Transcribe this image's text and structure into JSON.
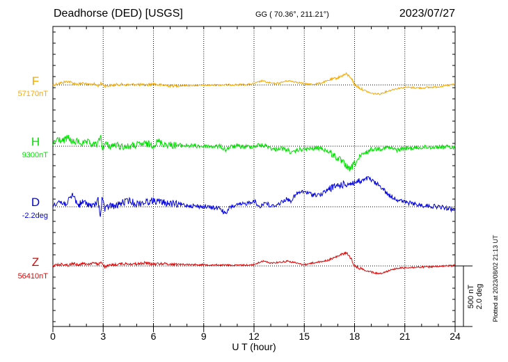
{
  "header": {
    "station": "Deadhorse (DED)  [USGS]",
    "coords": "GG ( 70.36°, 211.21°)",
    "date": "2023/07/27"
  },
  "side_note": "Plotted at 2023/08/02 21:13 UT",
  "scale_bar": {
    "nt_label": "500 nT",
    "deg_label": "2.0 deg"
  },
  "chart_data": {
    "type": "line",
    "xlabel": "U T (hour)",
    "xlim": [
      0,
      24
    ],
    "xticks": [
      "0",
      "3",
      "6",
      "9",
      "12",
      "15",
      "18",
      "21",
      "24"
    ],
    "grid": true,
    "series": [
      {
        "name": "F",
        "baseline_label": "57170nT",
        "color": "#f5a800",
        "points": [
          [
            0,
            57170
          ],
          [
            0.3,
            57180
          ],
          [
            0.6,
            57190
          ],
          [
            0.9,
            57200
          ],
          [
            1.2,
            57185
          ],
          [
            1.5,
            57175
          ],
          [
            1.8,
            57185
          ],
          [
            2.1,
            57170
          ],
          [
            2.4,
            57180
          ],
          [
            2.7,
            57165
          ],
          [
            2.9,
            57185
          ],
          [
            3.1,
            57160
          ],
          [
            3.4,
            57165
          ],
          [
            3.7,
            57170
          ],
          [
            4.0,
            57175
          ],
          [
            4.5,
            57170
          ],
          [
            5.0,
            57175
          ],
          [
            5.5,
            57168
          ],
          [
            6.0,
            57180
          ],
          [
            6.3,
            57170
          ],
          [
            6.6,
            57168
          ],
          [
            7.0,
            57162
          ],
          [
            8.0,
            57165
          ],
          [
            9.0,
            57167
          ],
          [
            10.0,
            57170
          ],
          [
            11.0,
            57172
          ],
          [
            11.8,
            57175
          ],
          [
            12.2,
            57190
          ],
          [
            12.5,
            57205
          ],
          [
            12.8,
            57190
          ],
          [
            13.2,
            57180
          ],
          [
            13.5,
            57185
          ],
          [
            14.0,
            57205
          ],
          [
            14.5,
            57195
          ],
          [
            15.0,
            57180
          ],
          [
            15.5,
            57175
          ],
          [
            16.0,
            57185
          ],
          [
            16.5,
            57210
          ],
          [
            17.0,
            57230
          ],
          [
            17.5,
            57260
          ],
          [
            17.8,
            57230
          ],
          [
            18.0,
            57170
          ],
          [
            18.5,
            57130
          ],
          [
            19.0,
            57100
          ],
          [
            19.5,
            57095
          ],
          [
            20.0,
            57120
          ],
          [
            20.5,
            57140
          ],
          [
            21.0,
            57150
          ],
          [
            22.0,
            57145
          ],
          [
            23.0,
            57155
          ],
          [
            24.0,
            57175
          ]
        ]
      },
      {
        "name": "H",
        "baseline_label": "9300nT",
        "color": "#00e000",
        "points": [
          [
            0,
            9320
          ],
          [
            0.3,
            9360
          ],
          [
            0.6,
            9340
          ],
          [
            0.9,
            9370
          ],
          [
            1.2,
            9330
          ],
          [
            1.5,
            9340
          ],
          [
            1.8,
            9320
          ],
          [
            2.1,
            9330
          ],
          [
            2.4,
            9310
          ],
          [
            2.7,
            9320
          ],
          [
            2.85,
            9390
          ],
          [
            2.95,
            9280
          ],
          [
            3.1,
            9320
          ],
          [
            3.4,
            9300
          ],
          [
            3.7,
            9310
          ],
          [
            4.0,
            9300
          ],
          [
            4.5,
            9295
          ],
          [
            5.0,
            9310
          ],
          [
            5.5,
            9320
          ],
          [
            6.0,
            9310
          ],
          [
            6.3,
            9340
          ],
          [
            6.6,
            9320
          ],
          [
            7.0,
            9310
          ],
          [
            8.0,
            9305
          ],
          [
            9.0,
            9300
          ],
          [
            10.0,
            9298
          ],
          [
            10.3,
            9270
          ],
          [
            10.6,
            9295
          ],
          [
            11.0,
            9300
          ],
          [
            11.5,
            9295
          ],
          [
            12.0,
            9300
          ],
          [
            12.3,
            9310
          ],
          [
            12.8,
            9300
          ],
          [
            13.2,
            9270
          ],
          [
            13.5,
            9285
          ],
          [
            14.0,
            9270
          ],
          [
            14.3,
            9240
          ],
          [
            14.6,
            9270
          ],
          [
            15.0,
            9275
          ],
          [
            15.5,
            9280
          ],
          [
            16.0,
            9285
          ],
          [
            16.5,
            9250
          ],
          [
            17.0,
            9200
          ],
          [
            17.5,
            9140
          ],
          [
            17.7,
            9100
          ],
          [
            18.0,
            9160
          ],
          [
            18.5,
            9230
          ],
          [
            19.0,
            9275
          ],
          [
            19.5,
            9280
          ],
          [
            20.0,
            9290
          ],
          [
            20.5,
            9270
          ],
          [
            21.0,
            9280
          ],
          [
            22.0,
            9290
          ],
          [
            23.0,
            9295
          ],
          [
            24.0,
            9290
          ]
        ]
      },
      {
        "name": "D",
        "baseline_label": "-2.2deg",
        "color": "#0000e0",
        "points": [
          [
            0,
            -2.15
          ],
          [
            0.3,
            -2.0
          ],
          [
            0.6,
            -2.1
          ],
          [
            0.9,
            -2.05
          ],
          [
            1.2,
            -1.8
          ],
          [
            1.5,
            -2.15
          ],
          [
            1.8,
            -2.05
          ],
          [
            2.1,
            -2.1
          ],
          [
            2.4,
            -2.2
          ],
          [
            2.7,
            -2.0
          ],
          [
            2.85,
            -2.5
          ],
          [
            2.95,
            -1.85
          ],
          [
            3.1,
            -2.3
          ],
          [
            3.4,
            -2.15
          ],
          [
            3.7,
            -2.2
          ],
          [
            4.0,
            -2.1
          ],
          [
            4.5,
            -2.0
          ],
          [
            5.0,
            -2.1
          ],
          [
            5.5,
            -2.05
          ],
          [
            6.0,
            -2.0
          ],
          [
            6.5,
            -2.05
          ],
          [
            7.0,
            -2.1
          ],
          [
            8.0,
            -2.15
          ],
          [
            9.0,
            -2.2
          ],
          [
            10.0,
            -2.25
          ],
          [
            10.3,
            -2.45
          ],
          [
            10.6,
            -2.2
          ],
          [
            11.0,
            -2.15
          ],
          [
            11.5,
            -2.1
          ],
          [
            12.0,
            -2.0
          ],
          [
            12.3,
            -2.2
          ],
          [
            12.7,
            -2.05
          ],
          [
            13.0,
            -2.2
          ],
          [
            13.5,
            -2.1
          ],
          [
            13.9,
            -1.95
          ],
          [
            14.2,
            -2.0
          ],
          [
            14.6,
            -1.75
          ],
          [
            15.0,
            -1.7
          ],
          [
            15.5,
            -1.8
          ],
          [
            16.0,
            -1.8
          ],
          [
            16.5,
            -1.6
          ],
          [
            17.0,
            -1.5
          ],
          [
            17.5,
            -1.45
          ],
          [
            18.0,
            -1.4
          ],
          [
            18.5,
            -1.35
          ],
          [
            18.8,
            -1.25
          ],
          [
            19.2,
            -1.4
          ],
          [
            19.6,
            -1.55
          ],
          [
            20.0,
            -1.8
          ],
          [
            20.5,
            -1.95
          ],
          [
            21.0,
            -2.05
          ],
          [
            22.0,
            -2.15
          ],
          [
            23.0,
            -2.2
          ],
          [
            24.0,
            -2.3
          ]
        ]
      },
      {
        "name": "Z",
        "baseline_label": "56410nT",
        "color": "#e00000",
        "points": [
          [
            0,
            56410
          ],
          [
            0.3,
            56420
          ],
          [
            0.6,
            56425
          ],
          [
            0.9,
            56415
          ],
          [
            1.2,
            56430
          ],
          [
            1.5,
            56420
          ],
          [
            1.8,
            56430
          ],
          [
            2.1,
            56425
          ],
          [
            2.4,
            56435
          ],
          [
            2.7,
            56420
          ],
          [
            2.9,
            56445
          ],
          [
            3.1,
            56400
          ],
          [
            3.4,
            56415
          ],
          [
            3.7,
            56420
          ],
          [
            4.0,
            56425
          ],
          [
            4.5,
            56430
          ],
          [
            5.0,
            56425
          ],
          [
            5.5,
            56435
          ],
          [
            6.0,
            56425
          ],
          [
            6.5,
            56430
          ],
          [
            7.0,
            56425
          ],
          [
            8.0,
            56422
          ],
          [
            9.0,
            56420
          ],
          [
            10.0,
            56418
          ],
          [
            11.0,
            56415
          ],
          [
            12.0,
            56420
          ],
          [
            12.5,
            56450
          ],
          [
            13.0,
            56435
          ],
          [
            13.5,
            56440
          ],
          [
            14.0,
            56450
          ],
          [
            14.5,
            56435
          ],
          [
            15.0,
            56420
          ],
          [
            15.5,
            56435
          ],
          [
            16.0,
            56445
          ],
          [
            16.5,
            56460
          ],
          [
            17.0,
            56490
          ],
          [
            17.5,
            56520
          ],
          [
            17.8,
            56470
          ],
          [
            18.0,
            56410
          ],
          [
            18.5,
            56380
          ],
          [
            19.0,
            56360
          ],
          [
            19.5,
            56345
          ],
          [
            20.0,
            56370
          ],
          [
            20.5,
            56390
          ],
          [
            21.0,
            56395
          ],
          [
            22.0,
            56400
          ],
          [
            23.0,
            56405
          ],
          [
            24.0,
            56415
          ]
        ]
      }
    ]
  }
}
